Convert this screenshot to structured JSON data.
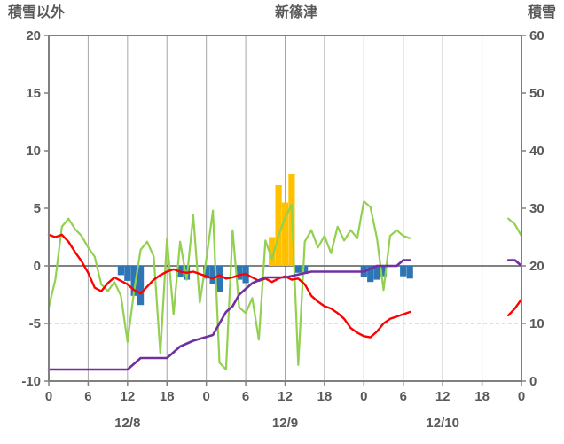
{
  "header": {
    "left_label": "積雪以外",
    "center_label": "新篠津",
    "right_label": "積雪"
  },
  "chart_data": {
    "type": "mixed",
    "title": "新篠津",
    "left_axis": {
      "label": "積雪以外",
      "min": -10,
      "max": 20,
      "tick_step": 5,
      "ticks": [
        "20",
        "15",
        "10",
        "5",
        "0",
        "-5",
        "-10"
      ]
    },
    "right_axis": {
      "label": "積雪",
      "min": 0,
      "max": 60,
      "tick_step": 10,
      "ticks": [
        "60",
        "50",
        "40",
        "30",
        "20",
        "10",
        "0"
      ]
    },
    "x_axis": {
      "total_hours": 72,
      "tick_interval_hours": 6,
      "tick_labels": [
        "0",
        "6",
        "12",
        "18",
        "0",
        "6",
        "12",
        "18",
        "0",
        "6",
        "12",
        "18",
        "0"
      ],
      "date_labels": [
        "12/8",
        "12/9",
        "12/10"
      ],
      "date_label_center_hours": [
        12,
        36,
        60
      ]
    },
    "colors": {
      "border": "#808080",
      "grid": "#A6A6A6",
      "dashed_grid": "#BFBFBF",
      "zero_line": "#595959",
      "axis_text": "#595959"
    },
    "dashed_gridline_values": [
      -5
    ],
    "legend": "none",
    "series": [
      {
        "id": "blue_bars",
        "type": "bar",
        "axis": "left",
        "color": "#2E75B6",
        "points": [
          [
            11,
            -0.8
          ],
          [
            12,
            -1.3
          ],
          [
            13,
            -2.6
          ],
          [
            14,
            -3.4
          ],
          [
            20,
            -1.0
          ],
          [
            21,
            -1.2
          ],
          [
            24,
            -1.1
          ],
          [
            25,
            -1.6
          ],
          [
            26,
            -2.3
          ],
          [
            29,
            -1.2
          ],
          [
            30,
            -1.5
          ],
          [
            38,
            -0.6
          ],
          [
            39,
            -0.7
          ],
          [
            48,
            -1.0
          ],
          [
            49,
            -1.4
          ],
          [
            50,
            -1.2
          ],
          [
            51,
            -0.9
          ],
          [
            54,
            -0.9
          ],
          [
            55,
            -1.1
          ]
        ]
      },
      {
        "id": "yellow_bars",
        "type": "bar",
        "axis": "left",
        "color": "#FFC000",
        "points": [
          [
            34,
            2.5
          ],
          [
            35,
            7.0
          ],
          [
            36,
            5.5
          ],
          [
            37,
            8.0
          ]
        ]
      },
      {
        "id": "green_line",
        "type": "line",
        "axis": "left",
        "color": "#92D050",
        "stroke_width": 2.2,
        "points": [
          [
            0,
            -3.6
          ],
          [
            1,
            -1.2
          ],
          [
            2,
            3.4
          ],
          [
            3,
            4.1
          ],
          [
            4,
            3.2
          ],
          [
            5,
            2.6
          ],
          [
            6,
            1.6
          ],
          [
            7,
            0.8
          ],
          [
            8,
            -1.6
          ],
          [
            9,
            -2.2
          ],
          [
            10,
            -1.4
          ],
          [
            11,
            -2.6
          ],
          [
            12,
            -6.6
          ],
          [
            13,
            -2.2
          ],
          [
            14,
            1.4
          ],
          [
            15,
            2.1
          ],
          [
            16,
            0.8
          ],
          [
            17,
            -7.6
          ],
          [
            18,
            2.4
          ],
          [
            19,
            -4.2
          ],
          [
            20,
            2.1
          ],
          [
            21,
            -1.2
          ],
          [
            22,
            4.4
          ],
          [
            23,
            -3.2
          ],
          [
            24,
            0.6
          ],
          [
            25,
            4.8
          ],
          [
            26,
            -8.4
          ],
          [
            27,
            -9.0
          ],
          [
            28,
            3.1
          ],
          [
            29,
            -3.6
          ],
          [
            30,
            -4.1
          ],
          [
            31,
            -2.8
          ],
          [
            32,
            -6.4
          ],
          [
            33,
            2.2
          ],
          [
            34,
            0.6
          ],
          [
            35,
            2.6
          ],
          [
            36,
            4.2
          ],
          [
            37,
            5.3
          ],
          [
            38,
            -8.6
          ],
          [
            39,
            2.1
          ],
          [
            40,
            3.1
          ],
          [
            41,
            1.6
          ],
          [
            42,
            2.6
          ],
          [
            43,
            1.1
          ],
          [
            44,
            3.4
          ],
          [
            45,
            2.2
          ],
          [
            46,
            3.1
          ],
          [
            47,
            2.4
          ],
          [
            48,
            5.6
          ],
          [
            49,
            5.1
          ],
          [
            50,
            2.4
          ],
          [
            51,
            -2.1
          ],
          [
            52,
            2.6
          ],
          [
            53,
            3.1
          ],
          [
            54,
            2.6
          ],
          [
            55,
            2.4
          ],
          [
            70,
            4.1
          ],
          [
            71,
            3.6
          ],
          [
            72,
            2.6
          ]
        ]
      },
      {
        "id": "red_line",
        "type": "line",
        "axis": "left",
        "color": "#FF0000",
        "stroke_width": 2.4,
        "points": [
          [
            0,
            2.7
          ],
          [
            1,
            2.5
          ],
          [
            2,
            2.7
          ],
          [
            3,
            2.1
          ],
          [
            4,
            1.2
          ],
          [
            5,
            0.4
          ],
          [
            6,
            -0.6
          ],
          [
            7,
            -1.9
          ],
          [
            8,
            -2.2
          ],
          [
            9,
            -1.5
          ],
          [
            10,
            -1.0
          ],
          [
            11,
            -1.3
          ],
          [
            12,
            -1.6
          ],
          [
            13,
            -2.1
          ],
          [
            14,
            -2.4
          ],
          [
            15,
            -1.8
          ],
          [
            16,
            -1.2
          ],
          [
            17,
            -0.8
          ],
          [
            18,
            -0.5
          ],
          [
            19,
            -0.3
          ],
          [
            20,
            -0.5
          ],
          [
            21,
            -0.6
          ],
          [
            22,
            -0.5
          ],
          [
            23,
            -0.7
          ],
          [
            24,
            -0.9
          ],
          [
            25,
            -1.1
          ],
          [
            26,
            -0.8
          ],
          [
            27,
            -1.1
          ],
          [
            28,
            -1.0
          ],
          [
            29,
            -0.8
          ],
          [
            30,
            -0.7
          ],
          [
            31,
            -1.0
          ],
          [
            32,
            -1.3
          ],
          [
            33,
            -1.1
          ],
          [
            34,
            -1.4
          ],
          [
            35,
            -1.1
          ],
          [
            36,
            -0.9
          ],
          [
            37,
            -1.2
          ],
          [
            38,
            -1.1
          ],
          [
            39,
            -1.6
          ],
          [
            40,
            -2.6
          ],
          [
            41,
            -3.1
          ],
          [
            42,
            -3.5
          ],
          [
            43,
            -3.7
          ],
          [
            44,
            -4.1
          ],
          [
            45,
            -4.6
          ],
          [
            46,
            -5.4
          ],
          [
            47,
            -5.8
          ],
          [
            48,
            -6.1
          ],
          [
            49,
            -6.2
          ],
          [
            50,
            -5.7
          ],
          [
            51,
            -5.0
          ],
          [
            52,
            -4.6
          ],
          [
            53,
            -4.4
          ],
          [
            54,
            -4.2
          ],
          [
            55,
            -4.0
          ],
          [
            70,
            -4.3
          ],
          [
            71,
            -3.7
          ],
          [
            72,
            -2.9
          ]
        ]
      },
      {
        "id": "purple_line",
        "type": "line",
        "axis": "right",
        "color": "#7030A0",
        "stroke_width": 2.6,
        "points": [
          [
            0,
            2
          ],
          [
            6,
            2
          ],
          [
            12,
            2
          ],
          [
            13,
            3
          ],
          [
            14,
            4
          ],
          [
            18,
            4
          ],
          [
            19,
            5
          ],
          [
            20,
            6
          ],
          [
            22,
            7
          ],
          [
            25,
            8
          ],
          [
            26,
            10
          ],
          [
            27,
            12
          ],
          [
            28,
            13
          ],
          [
            29,
            15
          ],
          [
            30,
            16
          ],
          [
            31,
            17
          ],
          [
            33,
            18
          ],
          [
            36,
            18
          ],
          [
            40,
            19
          ],
          [
            48,
            19
          ],
          [
            50,
            20
          ],
          [
            53,
            20
          ],
          [
            54,
            21
          ],
          [
            55,
            21
          ],
          [
            70,
            21
          ],
          [
            71,
            21
          ],
          [
            72,
            20
          ]
        ]
      }
    ]
  }
}
